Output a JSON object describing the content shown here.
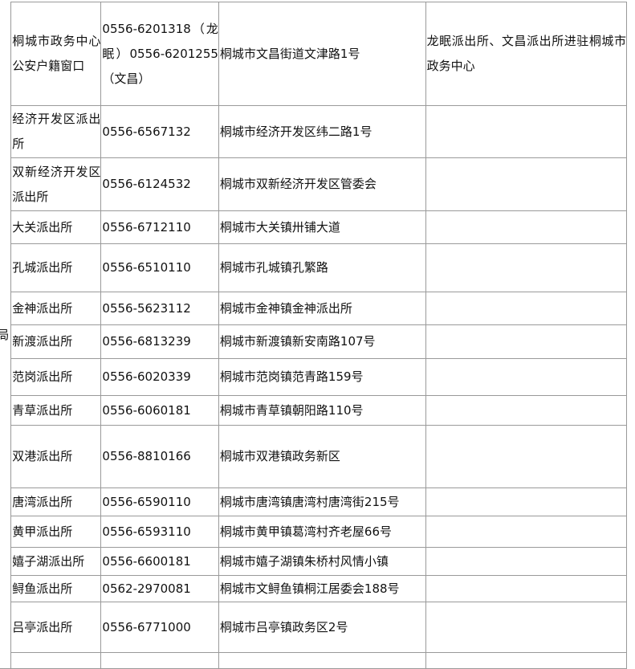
{
  "side_label": "局",
  "rows": [
    {
      "name": "桐城市政务中心公安户籍窗口",
      "phone": "0556-6201318（龙眠）0556-6201255（文昌）",
      "address": "桐城市文昌街道文津路1号",
      "note": "龙眠派出所、文昌派出所进驻桐城市政务中心"
    },
    {
      "name": "经济开发区派出所",
      "phone": "0556-6567132",
      "address": "桐城市经济开发区纬二路1号",
      "note": ""
    },
    {
      "name": "双新经济开发区派出所",
      "phone": "0556-6124532",
      "address": "桐城市双新经济开发区管委会",
      "note": ""
    },
    {
      "name": "大关派出所",
      "phone": "0556-6712110",
      "address": "桐城市大关镇卅铺大道",
      "note": ""
    },
    {
      "name": "孔城派出所",
      "phone": "0556-6510110",
      "address": "桐城市孔城镇孔繁路",
      "note": ""
    },
    {
      "name": "金神派出所",
      "phone": "0556-5623112",
      "address": "桐城市金神镇金神派出所",
      "note": ""
    },
    {
      "name": "新渡派出所",
      "phone": "0556-6813239",
      "address": "桐城市新渡镇新安南路107号",
      "note": ""
    },
    {
      "name": "范岗派出所",
      "phone": "0556-6020339",
      "address": "桐城市范岗镇范青路159号",
      "note": ""
    },
    {
      "name": "青草派出所",
      "phone": "0556-6060181",
      "address": "桐城市青草镇朝阳路110号",
      "note": ""
    },
    {
      "name": "双港派出所",
      "phone": "0556-8810166",
      "address": "桐城市双港镇政务新区",
      "note": ""
    },
    {
      "name": "唐湾派出所",
      "phone": "0556-6590110",
      "address": "桐城市唐湾镇唐湾村唐湾街215号",
      "note": ""
    },
    {
      "name": "黄甲派出所",
      "phone": "0556-6593110",
      "address": "桐城市黄甲镇葛湾村齐老屋66号",
      "note": ""
    },
    {
      "name": "嬉子湖派出所",
      "phone": "0556-6600181",
      "address": "桐城市嬉子湖镇朱桥村风情小镇",
      "note": ""
    },
    {
      "name": "鲟鱼派出所",
      "phone": "0562-2970081",
      "address": "桐城市文鲟鱼镇桐江居委会188号",
      "note": ""
    },
    {
      "name": "吕亭派出所",
      "phone": "0556-6771000",
      "address": "桐城市吕亭镇政务区2号",
      "note": ""
    },
    {
      "name": "",
      "phone": "",
      "address": "",
      "note": ""
    }
  ]
}
